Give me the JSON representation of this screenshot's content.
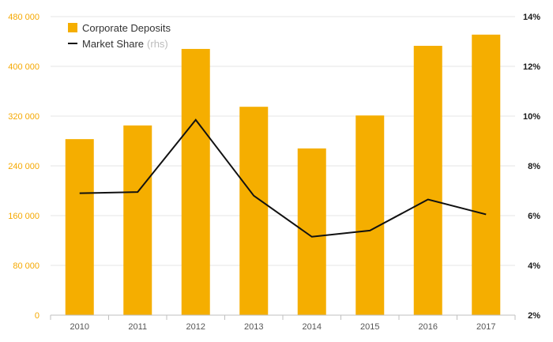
{
  "chart_data": {
    "type": "bar",
    "categories": [
      "2010",
      "2011",
      "2012",
      "2013",
      "2014",
      "2015",
      "2016",
      "2017"
    ],
    "series": [
      {
        "name": "Corporate Deposits",
        "type": "bar",
        "axis": "left",
        "color": "#f5ae00",
        "values": [
          283000,
          305000,
          428000,
          335000,
          268000,
          321000,
          433000,
          451000
        ]
      },
      {
        "name": "Market Share",
        "name_suffix": "(rhs)",
        "type": "line",
        "axis": "right",
        "color": "#111111",
        "values": [
          6.9,
          6.95,
          9.85,
          6.8,
          5.15,
          5.4,
          6.65,
          6.05
        ]
      }
    ],
    "left_axis": {
      "ylim": [
        0,
        480000
      ],
      "ticks": [
        0,
        80000,
        160000,
        240000,
        320000,
        400000,
        480000
      ],
      "tick_labels": [
        "0",
        "80 000",
        "160 000",
        "240 000",
        "320 000",
        "400 000",
        "480 000"
      ],
      "color": "#f5a800"
    },
    "right_axis": {
      "ylim": [
        2,
        14
      ],
      "ticks": [
        2,
        4,
        6,
        8,
        10,
        12,
        14
      ],
      "tick_labels": [
        "2%",
        "4%",
        "6%",
        "8%",
        "10%",
        "12%",
        "14%"
      ],
      "color": "#1a1a1a"
    },
    "grid": true,
    "legend_position": "top-left"
  }
}
